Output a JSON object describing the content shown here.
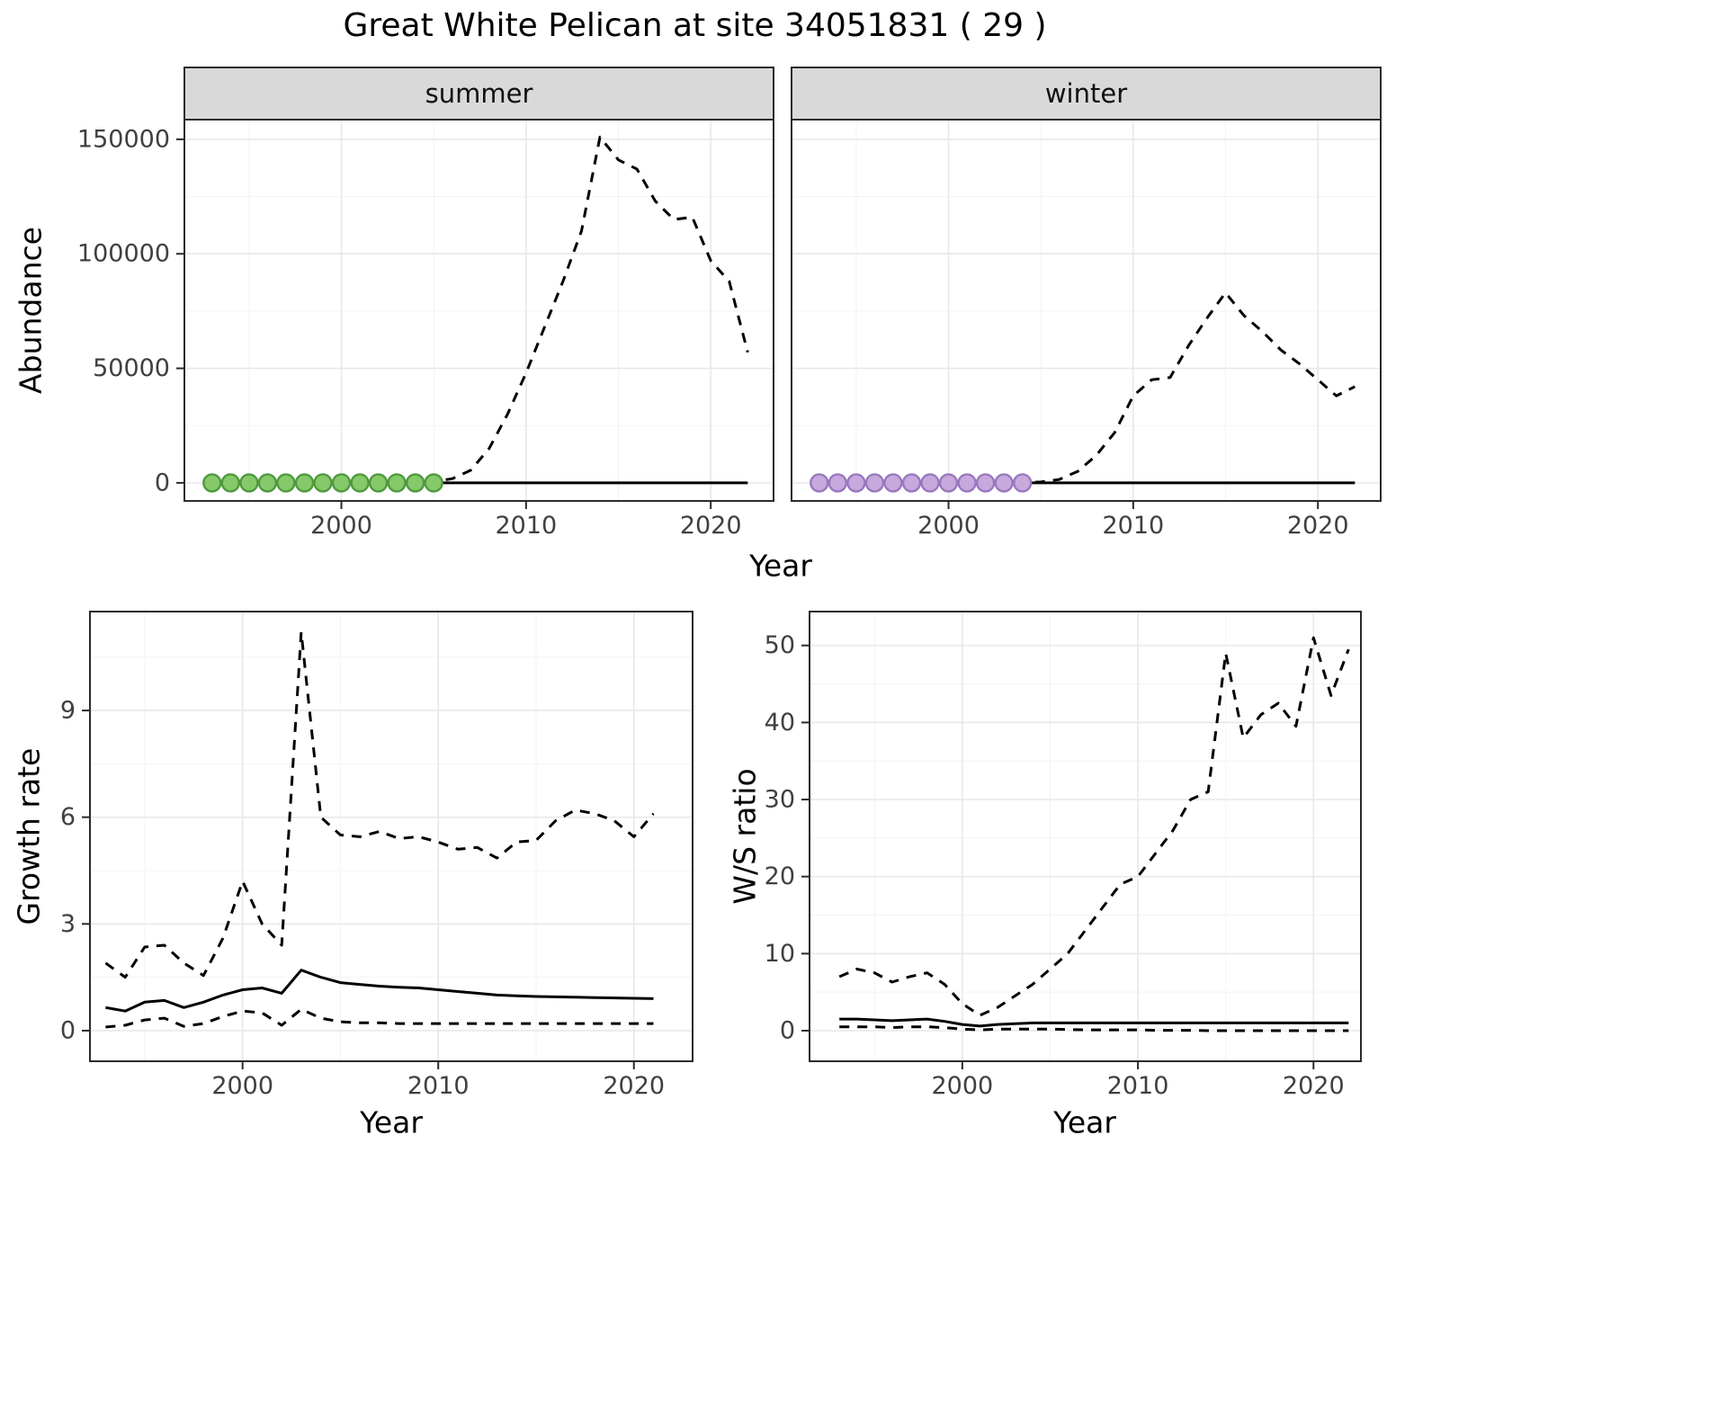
{
  "title": "Great White Pelican at site 34051831 ( 29 )",
  "labels": {
    "abundance_ylab": "Abundance",
    "growth_ylab": "Growth rate",
    "ws_ylab": "W/S ratio",
    "xlab": "Year"
  },
  "colors": {
    "line": "#000000",
    "strip_bg": "#d9d9d9",
    "grid_major": "#e8e8e8",
    "grid_minor": "#f3f3f3",
    "panel_border": "#2b2b2b",
    "axis_text": "#404040",
    "summer_point_fill": "#85c96a",
    "summer_point_stroke": "#4e9a3e",
    "winter_point_fill": "#c7a9dd",
    "winter_point_stroke": "#9878be"
  },
  "chart_data": [
    {
      "id": "summer-abundance",
      "type": "line",
      "facet": "summer",
      "title": "",
      "xlabel": "Year",
      "ylabel": "Abundance",
      "xlim": [
        1991.5,
        2023.4
      ],
      "ylim": [
        -7900,
        158600
      ],
      "xticks": [
        2000,
        2010,
        2020
      ],
      "yticks": [
        0,
        50000,
        100000,
        150000
      ],
      "grid": true,
      "x": [
        1993,
        1994,
        1995,
        1996,
        1997,
        1998,
        1999,
        2000,
        2001,
        2002,
        2003,
        2004,
        2005,
        2006,
        2007,
        2008,
        2009,
        2010,
        2011,
        2012,
        2013,
        2014,
        2015,
        2016,
        2017,
        2018,
        2019,
        2020,
        2021,
        2022
      ],
      "series": [
        {
          "name": "upper-ci",
          "style": "dashed",
          "values": [
            150,
            150,
            150,
            150,
            150,
            150,
            150,
            150,
            150,
            150,
            150,
            250,
            600,
            1800,
            5500,
            15000,
            30000,
            48000,
            68000,
            88000,
            110000,
            151000,
            141000,
            137000,
            123000,
            115000,
            116000,
            97000,
            88000,
            57000
          ]
        },
        {
          "name": "fit",
          "style": "solid",
          "values": [
            0,
            0,
            0,
            0,
            0,
            0,
            0,
            0,
            0,
            0,
            0,
            0,
            0,
            0,
            0,
            0,
            0,
            0,
            0,
            0,
            0,
            0,
            0,
            0,
            0,
            0,
            0,
            0,
            0,
            0
          ]
        }
      ],
      "points": {
        "name": "observed-counts",
        "fill": "#85c96a",
        "stroke": "#4e9a3e",
        "x": [
          1993,
          1994,
          1995,
          1996,
          1997,
          1998,
          1999,
          2000,
          2001,
          2002,
          2003,
          2004,
          2005
        ],
        "y": [
          0,
          0,
          0,
          0,
          0,
          0,
          0,
          0,
          0,
          0,
          0,
          0,
          0
        ]
      }
    },
    {
      "id": "winter-abundance",
      "type": "line",
      "facet": "winter",
      "title": "",
      "xlabel": "Year",
      "ylabel": "Abundance",
      "xlim": [
        1991.5,
        2023.4
      ],
      "ylim": [
        -7900,
        158600
      ],
      "xticks": [
        2000,
        2010,
        2020
      ],
      "yticks": [
        0,
        50000,
        100000,
        150000
      ],
      "grid": true,
      "x": [
        1993,
        1994,
        1995,
        1996,
        1997,
        1998,
        1999,
        2000,
        2001,
        2002,
        2003,
        2004,
        2005,
        2006,
        2007,
        2008,
        2009,
        2010,
        2011,
        2012,
        2013,
        2014,
        2015,
        2016,
        2017,
        2018,
        2019,
        2020,
        2021,
        2022
      ],
      "series": [
        {
          "name": "upper-ci",
          "style": "dashed",
          "values": [
            100,
            100,
            100,
            100,
            100,
            100,
            100,
            100,
            100,
            100,
            100,
            150,
            400,
            1500,
            5000,
            12000,
            22000,
            38000,
            45000,
            46000,
            60000,
            72000,
            83000,
            73000,
            66000,
            58000,
            52000,
            45000,
            38000,
            42000
          ]
        },
        {
          "name": "fit",
          "style": "solid",
          "values": [
            0,
            0,
            0,
            0,
            0,
            0,
            0,
            0,
            0,
            0,
            0,
            0,
            0,
            0,
            0,
            0,
            0,
            0,
            0,
            0,
            0,
            0,
            0,
            0,
            0,
            0,
            0,
            0,
            0,
            0
          ]
        }
      ],
      "points": {
        "name": "observed-counts",
        "fill": "#c7a9dd",
        "stroke": "#9878be",
        "x": [
          1993,
          1994,
          1995,
          1996,
          1997,
          1998,
          1999,
          2000,
          2001,
          2002,
          2003,
          2004
        ],
        "y": [
          0,
          0,
          0,
          0,
          0,
          0,
          0,
          0,
          0,
          0,
          0,
          0
        ]
      }
    },
    {
      "id": "growth-rate",
      "type": "line",
      "facet": null,
      "title": "",
      "xlabel": "Year",
      "ylabel": "Growth rate",
      "xlim": [
        1992.2,
        2023
      ],
      "ylim": [
        -0.86,
        11.78
      ],
      "xticks": [
        2000,
        2010,
        2020
      ],
      "yticks": [
        0,
        3,
        6,
        9
      ],
      "grid": true,
      "x": [
        1993,
        1994,
        1995,
        1996,
        1997,
        1998,
        1999,
        2000,
        2001,
        2002,
        2003,
        2004,
        2005,
        2006,
        2007,
        2008,
        2009,
        2010,
        2011,
        2012,
        2013,
        2014,
        2015,
        2016,
        2017,
        2018,
        2019,
        2020,
        2021
      ],
      "series": [
        {
          "name": "upper-ci",
          "style": "dashed",
          "values": [
            1.9,
            1.5,
            2.35,
            2.4,
            1.9,
            1.55,
            2.6,
            4.2,
            3.0,
            2.4,
            11.2,
            6.0,
            5.5,
            5.45,
            5.6,
            5.4,
            5.45,
            5.3,
            5.1,
            5.15,
            4.85,
            5.3,
            5.35,
            5.9,
            6.2,
            6.1,
            5.9,
            5.45,
            6.1
          ]
        },
        {
          "name": "lower-ci",
          "style": "dashed",
          "values": [
            0.1,
            0.15,
            0.3,
            0.35,
            0.12,
            0.2,
            0.4,
            0.55,
            0.5,
            0.15,
            0.6,
            0.35,
            0.25,
            0.22,
            0.22,
            0.2,
            0.2,
            0.2,
            0.2,
            0.2,
            0.2,
            0.2,
            0.2,
            0.2,
            0.2,
            0.2,
            0.2,
            0.2,
            0.2
          ]
        },
        {
          "name": "fit",
          "style": "solid",
          "values": [
            0.65,
            0.55,
            0.8,
            0.85,
            0.65,
            0.8,
            1.0,
            1.15,
            1.2,
            1.05,
            1.7,
            1.5,
            1.35,
            1.3,
            1.25,
            1.22,
            1.2,
            1.15,
            1.1,
            1.05,
            1.0,
            0.98,
            0.96,
            0.95,
            0.94,
            0.93,
            0.92,
            0.91,
            0.9
          ]
        }
      ]
    },
    {
      "id": "ws-ratio",
      "type": "line",
      "facet": null,
      "title": "",
      "xlabel": "Year",
      "ylabel": "W/S ratio",
      "xlim": [
        1991.3,
        2022.7
      ],
      "ylim": [
        -3.97,
        54.4
      ],
      "xticks": [
        2000,
        2010,
        2020
      ],
      "yticks": [
        0,
        10,
        20,
        30,
        40,
        50
      ],
      "grid": true,
      "x": [
        1993,
        1994,
        1995,
        1996,
        1997,
        1998,
        1999,
        2000,
        2001,
        2002,
        2003,
        2004,
        2005,
        2006,
        2007,
        2008,
        2009,
        2010,
        2011,
        2012,
        2013,
        2014,
        2015,
        2016,
        2017,
        2018,
        2019,
        2020,
        2021,
        2022
      ],
      "series": [
        {
          "name": "upper-ci",
          "style": "dashed",
          "values": [
            7,
            8,
            7.5,
            6.3,
            7,
            7.5,
            6,
            3.5,
            2,
            3,
            4.5,
            6,
            8,
            10,
            13,
            16,
            19,
            20,
            23,
            26,
            30,
            31,
            49,
            38,
            41,
            42.5,
            39.5,
            51,
            43.5,
            49.5
          ]
        },
        {
          "name": "lower-ci",
          "style": "dashed",
          "values": [
            0.5,
            0.5,
            0.5,
            0.4,
            0.5,
            0.5,
            0.4,
            0.2,
            0.1,
            0.2,
            0.2,
            0.2,
            0.2,
            0.15,
            0.1,
            0.1,
            0.1,
            0.1,
            0.05,
            0.05,
            0.05,
            0,
            0,
            0,
            0,
            0,
            0,
            0,
            0,
            0
          ]
        },
        {
          "name": "fit",
          "style": "solid",
          "values": [
            1.5,
            1.5,
            1.4,
            1.3,
            1.4,
            1.5,
            1.2,
            0.8,
            0.6,
            0.8,
            0.9,
            1.0,
            1.0,
            1.0,
            1.0,
            1.0,
            1.0,
            1.0,
            1.0,
            1.0,
            1.0,
            1.0,
            1.0,
            1.0,
            1.0,
            1.0,
            1.0,
            1.0,
            1.0,
            1.0
          ]
        }
      ]
    }
  ]
}
